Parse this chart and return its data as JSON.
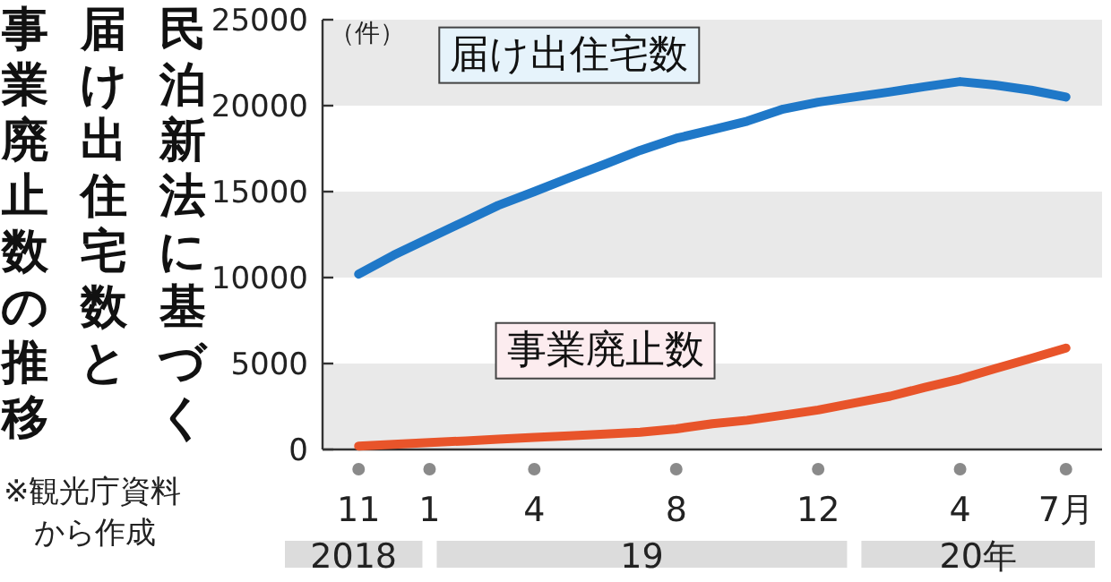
{
  "chart_data": {
    "type": "line",
    "title": "民泊新法に基づく届け出住宅数と事業廃止数の推移",
    "ylabel": "（件）",
    "x": [
      "2018-11",
      "2018-12",
      "2019-01",
      "2019-02",
      "2019-03",
      "2019-04",
      "2019-05",
      "2019-06",
      "2019-07",
      "2019-08",
      "2019-09",
      "2019-10",
      "2019-11",
      "2019-12",
      "2020-01",
      "2020-02",
      "2020-03",
      "2020-04",
      "2020-05",
      "2020-06",
      "2020-07"
    ],
    "series": [
      {
        "name": "届け出住宅数",
        "color": "#1f78c8",
        "values": [
          10200,
          11300,
          12300,
          13300,
          14200,
          15000,
          15800,
          16600,
          17400,
          18100,
          18600,
          19100,
          19800,
          20200,
          20500,
          20800,
          21100,
          21400,
          21200,
          20900,
          20500
        ]
      },
      {
        "name": "事業廃止数",
        "color": "#e8542a",
        "values": [
          200,
          300,
          400,
          500,
          600,
          700,
          800,
          900,
          1000,
          1200,
          1500,
          1700,
          2000,
          2300,
          2700,
          3100,
          3600,
          4100,
          4700,
          5300,
          5900
        ]
      }
    ],
    "xlim": [
      "2018-10",
      "2020-08"
    ],
    "xticks": [
      {
        "value": "2018-11",
        "label": "11"
      },
      {
        "value": "2019-01",
        "label": "1"
      },
      {
        "value": "2019-04",
        "label": "4"
      },
      {
        "value": "2019-08",
        "label": "8"
      },
      {
        "value": "2019-12",
        "label": "12"
      },
      {
        "value": "2020-04",
        "label": "4"
      },
      {
        "value": "2020-07",
        "label": "7月"
      }
    ],
    "ylim": [
      0,
      25000
    ],
    "yticks": [
      0,
      5000,
      10000,
      15000,
      20000,
      25000
    ],
    "bands": [
      {
        "axis": "y",
        "from": 0,
        "to": 5000,
        "color": "#e9e9e9"
      },
      {
        "axis": "y",
        "from": 10000,
        "to": 15000,
        "color": "#e9e9e9"
      },
      {
        "axis": "y",
        "from": 20000,
        "to": 25000,
        "color": "#e9e9e9"
      }
    ],
    "grid": false,
    "marker": "none",
    "line_style": "solid",
    "annotations": [
      "2018",
      "19",
      "20年",
      "※観光庁資料から作成"
    ]
  }
}
